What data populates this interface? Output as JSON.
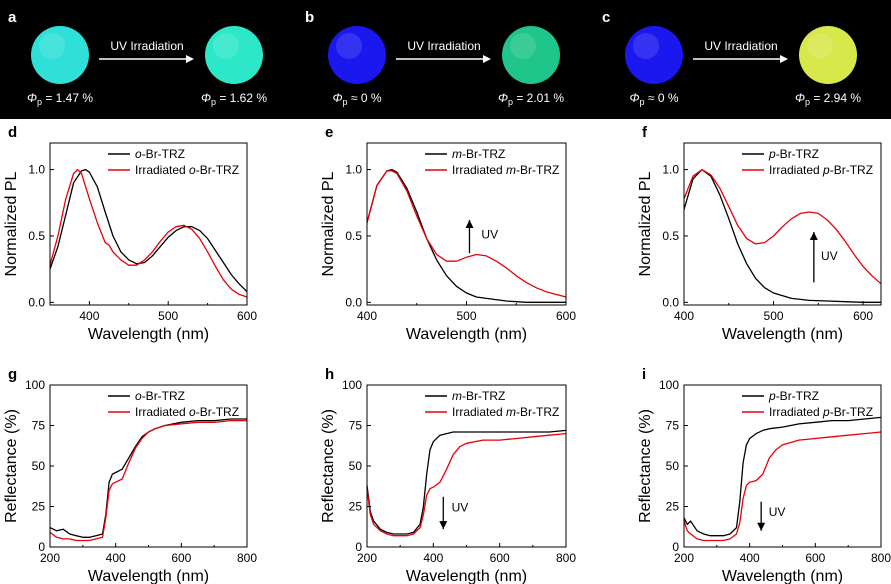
{
  "photos": [
    {
      "label": "a",
      "arrow_text": "UV Irradiation",
      "before_value": " = 1.47 %",
      "after_value": " = 1.62 %",
      "before_color": "#2fe0d8",
      "after_color": "#2de8c8"
    },
    {
      "label": "b",
      "arrow_text": "UV Irradiation",
      "before_value": " ≈ 0 %",
      "after_value": " = 2.01 %",
      "before_color": "#1a17ef",
      "after_color": "#1fc58a"
    },
    {
      "label": "c",
      "arrow_text": "UV Irradiation",
      "before_value": " ≈ 0 %",
      "after_value": " = 2.94 %",
      "before_color": "#1a17ef",
      "after_color": "#d6e84a"
    }
  ],
  "phi_symbol": "Φ",
  "phi_sub": "p",
  "chart_data": [
    {
      "panel": "d",
      "type": "line",
      "xlabel": "Wavelength (nm)",
      "ylabel": "Normalized PL",
      "xlim": [
        350,
        600
      ],
      "ylim": [
        -0.02,
        1.2
      ],
      "xticks": [
        400,
        500,
        600
      ],
      "yticks": [
        0.0,
        0.5,
        1.0
      ],
      "ytick_labels": [
        "0.0",
        "0.5",
        "1.0"
      ],
      "legend": "top-right",
      "series": [
        {
          "name_prefix": "",
          "name_italic": "o",
          "name_suffix": "-Br-TRZ",
          "color": "#000000",
          "x": [
            350,
            360,
            370,
            380,
            390,
            395,
            400,
            410,
            420,
            430,
            440,
            450,
            460,
            470,
            480,
            490,
            500,
            510,
            520,
            530,
            540,
            550,
            560,
            570,
            580,
            590,
            600
          ],
          "y": [
            0.25,
            0.42,
            0.66,
            0.9,
            0.99,
            1.0,
            0.98,
            0.87,
            0.68,
            0.5,
            0.38,
            0.32,
            0.29,
            0.3,
            0.35,
            0.42,
            0.49,
            0.54,
            0.57,
            0.57,
            0.54,
            0.48,
            0.39,
            0.3,
            0.21,
            0.14,
            0.08
          ]
        },
        {
          "name_prefix": "Irradiated ",
          "name_italic": "o",
          "name_suffix": "-Br-TRZ",
          "color": "#e8000b",
          "x": [
            350,
            360,
            370,
            380,
            385,
            390,
            400,
            410,
            420,
            425,
            430,
            440,
            450,
            460,
            470,
            480,
            490,
            500,
            510,
            520,
            530,
            540,
            550,
            560,
            570,
            580,
            590,
            600
          ],
          "y": [
            0.28,
            0.5,
            0.78,
            0.97,
            1.0,
            0.97,
            0.78,
            0.6,
            0.45,
            0.43,
            0.38,
            0.32,
            0.28,
            0.28,
            0.32,
            0.38,
            0.46,
            0.53,
            0.57,
            0.58,
            0.55,
            0.48,
            0.38,
            0.27,
            0.17,
            0.1,
            0.06,
            0.04
          ]
        }
      ],
      "annotations": []
    },
    {
      "panel": "e",
      "type": "line",
      "xlabel": "Wavelength (nm)",
      "ylabel": "Normalized PL",
      "xlim": [
        400,
        600
      ],
      "ylim": [
        -0.02,
        1.2
      ],
      "xticks": [
        400,
        500,
        600
      ],
      "yticks": [
        0.0,
        0.5,
        1.0
      ],
      "ytick_labels": [
        "0.0",
        "0.5",
        "1.0"
      ],
      "legend": "top-right",
      "series": [
        {
          "name_prefix": "",
          "name_italic": "m",
          "name_suffix": "-Br-TRZ",
          "color": "#000000",
          "x": [
            400,
            410,
            420,
            425,
            430,
            440,
            450,
            460,
            470,
            480,
            490,
            500,
            510,
            520,
            540,
            560,
            580,
            600
          ],
          "y": [
            0.6,
            0.88,
            0.99,
            1.0,
            0.98,
            0.86,
            0.68,
            0.48,
            0.32,
            0.2,
            0.12,
            0.07,
            0.04,
            0.03,
            0.01,
            0.0,
            0.0,
            0.0
          ]
        },
        {
          "name_prefix": "Irradiated ",
          "name_italic": "m",
          "name_suffix": "-Br-TRZ",
          "color": "#e8000b",
          "x": [
            400,
            410,
            420,
            425,
            430,
            440,
            450,
            460,
            470,
            480,
            490,
            500,
            510,
            520,
            530,
            540,
            550,
            560,
            570,
            580,
            590,
            600
          ],
          "y": [
            0.6,
            0.88,
            0.99,
            0.99,
            0.97,
            0.84,
            0.65,
            0.48,
            0.36,
            0.31,
            0.31,
            0.34,
            0.36,
            0.35,
            0.31,
            0.26,
            0.2,
            0.15,
            0.11,
            0.08,
            0.06,
            0.04
          ]
        }
      ],
      "annotations": [
        {
          "text": "UV",
          "x": 515,
          "y": 0.48,
          "arrow_from": [
            503,
            0.37
          ],
          "arrow_to": [
            503,
            0.62
          ]
        }
      ]
    },
    {
      "panel": "f",
      "type": "line",
      "xlabel": "Wavelength (nm)",
      "ylabel": "Normalized PL",
      "xlim": [
        400,
        620
      ],
      "ylim": [
        -0.02,
        1.2
      ],
      "xticks": [
        400,
        500,
        600
      ],
      "yticks": [
        0.0,
        0.5,
        1.0
      ],
      "ytick_labels": [
        "0.0",
        "0.5",
        "1.0"
      ],
      "legend": "top-right",
      "series": [
        {
          "name_prefix": "",
          "name_italic": "p",
          "name_suffix": "-Br-TRZ",
          "color": "#000000",
          "x": [
            400,
            410,
            420,
            430,
            440,
            450,
            460,
            470,
            480,
            490,
            500,
            520,
            540,
            560,
            580,
            600,
            620
          ],
          "y": [
            0.7,
            0.93,
            1.0,
            0.95,
            0.81,
            0.63,
            0.44,
            0.29,
            0.18,
            0.11,
            0.07,
            0.03,
            0.015,
            0.01,
            0.005,
            0.0,
            0.0
          ]
        },
        {
          "name_prefix": "Irradiated ",
          "name_italic": "p",
          "name_suffix": "-Br-TRZ",
          "color": "#e8000b",
          "x": [
            400,
            410,
            420,
            430,
            440,
            450,
            460,
            470,
            480,
            490,
            500,
            510,
            520,
            530,
            540,
            550,
            560,
            570,
            580,
            590,
            600,
            610,
            620
          ],
          "y": [
            0.78,
            0.95,
            1.0,
            0.96,
            0.86,
            0.72,
            0.58,
            0.48,
            0.44,
            0.45,
            0.5,
            0.57,
            0.63,
            0.67,
            0.68,
            0.67,
            0.62,
            0.55,
            0.46,
            0.36,
            0.27,
            0.2,
            0.14
          ]
        }
      ],
      "annotations": [
        {
          "text": "UV",
          "x": 553,
          "y": 0.32,
          "arrow_from": [
            545,
            0.15
          ],
          "arrow_to": [
            545,
            0.53
          ]
        }
      ]
    },
    {
      "panel": "g",
      "type": "line",
      "xlabel": "Wavelength (nm)",
      "ylabel": "Reflectance (%)",
      "xlim": [
        200,
        800
      ],
      "ylim": [
        0,
        100
      ],
      "xticks": [
        200,
        400,
        600,
        800
      ],
      "yticks": [
        0,
        25,
        50,
        75,
        100
      ],
      "ytick_labels": [
        "0",
        "25",
        "50",
        "75",
        "100"
      ],
      "legend": "top-right",
      "series": [
        {
          "name_prefix": "",
          "name_italic": "o",
          "name_suffix": "-Br-TRZ",
          "color": "#000000",
          "x": [
            200,
            220,
            240,
            260,
            280,
            300,
            320,
            340,
            360,
            370,
            380,
            390,
            400,
            420,
            440,
            460,
            480,
            500,
            520,
            550,
            600,
            650,
            700,
            750,
            800
          ],
          "y": [
            12,
            10,
            11,
            8,
            7,
            6,
            6,
            7,
            8,
            20,
            40,
            45,
            46,
            48,
            55,
            62,
            68,
            71,
            73,
            75,
            77,
            78,
            78,
            79,
            79
          ]
        },
        {
          "name_prefix": "Irradiated ",
          "name_italic": "o",
          "name_suffix": "-Br-TRZ",
          "color": "#e8000b",
          "x": [
            200,
            220,
            240,
            260,
            280,
            300,
            320,
            340,
            360,
            370,
            380,
            390,
            400,
            420,
            440,
            460,
            480,
            500,
            520,
            550,
            600,
            650,
            700,
            750,
            800
          ],
          "y": [
            9,
            6,
            5,
            5,
            4,
            4,
            4,
            5,
            6,
            18,
            35,
            39,
            40,
            42,
            52,
            61,
            67,
            71,
            73,
            75,
            76,
            77,
            77,
            78,
            78
          ]
        }
      ],
      "annotations": []
    },
    {
      "panel": "h",
      "type": "line",
      "xlabel": "Wavelength (nm)",
      "ylabel": "Reflectance (%)",
      "xlim": [
        200,
        800
      ],
      "ylim": [
        0,
        100
      ],
      "xticks": [
        200,
        400,
        600,
        800
      ],
      "yticks": [
        0,
        25,
        50,
        75,
        100
      ],
      "ytick_labels": [
        "0",
        "25",
        "50",
        "75",
        "100"
      ],
      "legend": "top-right",
      "series": [
        {
          "name_prefix": "",
          "name_italic": "m",
          "name_suffix": "-Br-TRZ",
          "color": "#000000",
          "x": [
            200,
            210,
            220,
            240,
            260,
            280,
            300,
            320,
            340,
            360,
            370,
            380,
            390,
            400,
            420,
            440,
            460,
            500,
            550,
            600,
            650,
            700,
            750,
            800
          ],
          "y": [
            38,
            22,
            16,
            11,
            9,
            8,
            8,
            8,
            9,
            14,
            25,
            45,
            60,
            65,
            69,
            70,
            71,
            71,
            71,
            71,
            71,
            71,
            71,
            72
          ]
        },
        {
          "name_prefix": "Irradiated ",
          "name_italic": "m",
          "name_suffix": "-Br-TRZ",
          "color": "#e8000b",
          "x": [
            200,
            210,
            220,
            240,
            260,
            280,
            300,
            320,
            340,
            360,
            370,
            380,
            390,
            400,
            420,
            440,
            460,
            480,
            500,
            550,
            600,
            650,
            700,
            750,
            800
          ],
          "y": [
            36,
            20,
            14,
            10,
            8,
            7,
            7,
            7,
            8,
            12,
            20,
            32,
            36,
            37,
            40,
            48,
            57,
            62,
            64,
            66,
            66,
            67,
            68,
            69,
            70
          ]
        }
      ],
      "annotations": [
        {
          "text": "UV",
          "x": 455,
          "y": 22,
          "arrow_from": [
            430,
            31
          ],
          "arrow_to": [
            430,
            11
          ]
        }
      ]
    },
    {
      "panel": "i",
      "type": "line",
      "xlabel": "Wavelength (nm)",
      "ylabel": "Reflectance (%)",
      "xlim": [
        200,
        800
      ],
      "ylim": [
        0,
        100
      ],
      "xticks": [
        200,
        400,
        600,
        800
      ],
      "yticks": [
        0,
        25,
        50,
        75,
        100
      ],
      "ytick_labels": [
        "0",
        "25",
        "50",
        "75",
        "100"
      ],
      "legend": "top-right",
      "series": [
        {
          "name_prefix": "",
          "name_italic": "p",
          "name_suffix": "-Br-TRZ",
          "color": "#000000",
          "x": [
            200,
            210,
            220,
            240,
            260,
            280,
            300,
            320,
            340,
            360,
            370,
            380,
            390,
            400,
            420,
            440,
            460,
            500,
            550,
            600,
            650,
            700,
            750,
            800
          ],
          "y": [
            18,
            14,
            16,
            10,
            8,
            7,
            7,
            7,
            8,
            12,
            28,
            52,
            63,
            67,
            70,
            72,
            73,
            74,
            76,
            77,
            78,
            78,
            79,
            80
          ]
        },
        {
          "name_prefix": "Irradiated ",
          "name_italic": "p",
          "name_suffix": "-Br-TRZ",
          "color": "#e8000b",
          "x": [
            200,
            210,
            220,
            240,
            260,
            280,
            300,
            320,
            340,
            360,
            370,
            380,
            390,
            400,
            420,
            440,
            460,
            480,
            500,
            550,
            600,
            650,
            700,
            750,
            800
          ],
          "y": [
            16,
            10,
            8,
            5,
            4,
            4,
            4,
            4,
            5,
            8,
            15,
            30,
            38,
            40,
            41,
            45,
            55,
            60,
            63,
            66,
            67,
            68,
            69,
            70,
            71
          ]
        }
      ],
      "annotations": [
        {
          "text": "UV",
          "x": 458,
          "y": 19,
          "arrow_from": [
            435,
            28
          ],
          "arrow_to": [
            435,
            10
          ]
        }
      ]
    }
  ]
}
